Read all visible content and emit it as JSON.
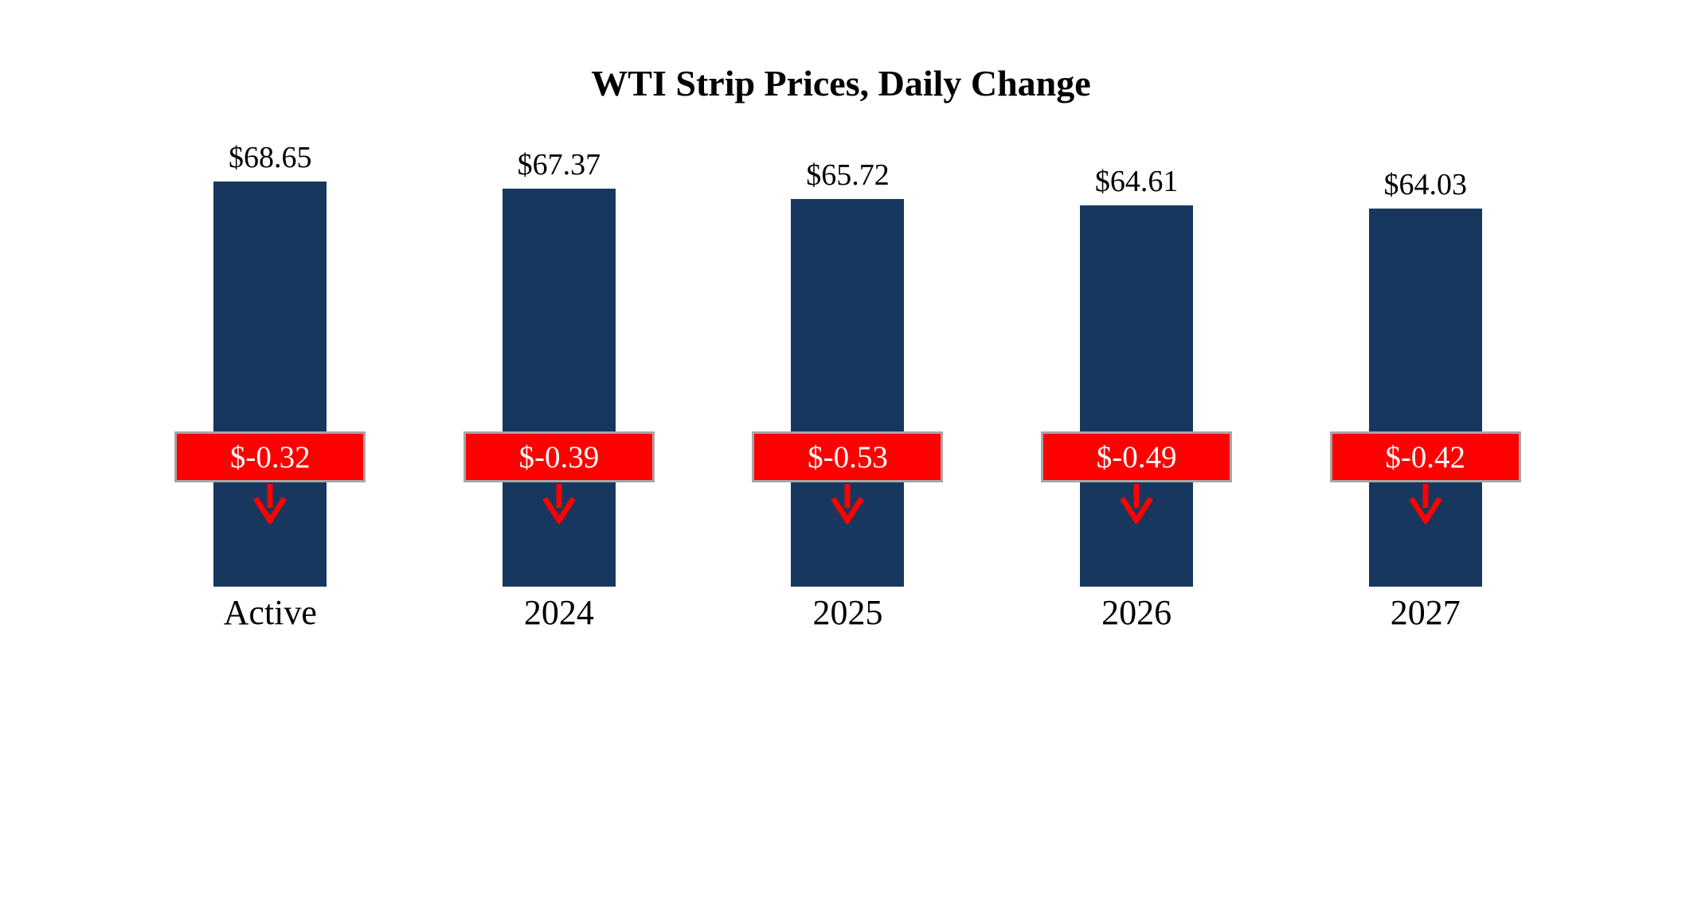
{
  "title": "WTI Strip Prices, Daily Change",
  "chart_data": {
    "type": "bar",
    "title": "WTI Strip Prices, Daily Change",
    "categories": [
      "Active",
      "2024",
      "2025",
      "2026",
      "2027"
    ],
    "series": [
      {
        "name": "Strip Price",
        "values": [
          68.65,
          67.37,
          65.72,
          64.61,
          64.03
        ]
      },
      {
        "name": "Daily Change",
        "values": [
          -0.32,
          -0.39,
          -0.53,
          -0.49,
          -0.42
        ]
      }
    ],
    "price_labels": [
      "$68.65",
      "$67.37",
      "$65.72",
      "$64.61",
      "$64.03"
    ],
    "change_labels": [
      "$-0.32",
      "$-0.39",
      "$-0.53",
      "$-0.49",
      "$-0.42"
    ],
    "xlabel": "",
    "ylabel": "",
    "ylim": [
      0,
      70
    ],
    "grid": false,
    "legend_position": "none",
    "colors": {
      "bar": "#17375E",
      "change_badge": "#FF0000",
      "change_text": "#FFFFFF",
      "arrow": "#FF0000",
      "badge_border": "#A6A6A6"
    }
  }
}
